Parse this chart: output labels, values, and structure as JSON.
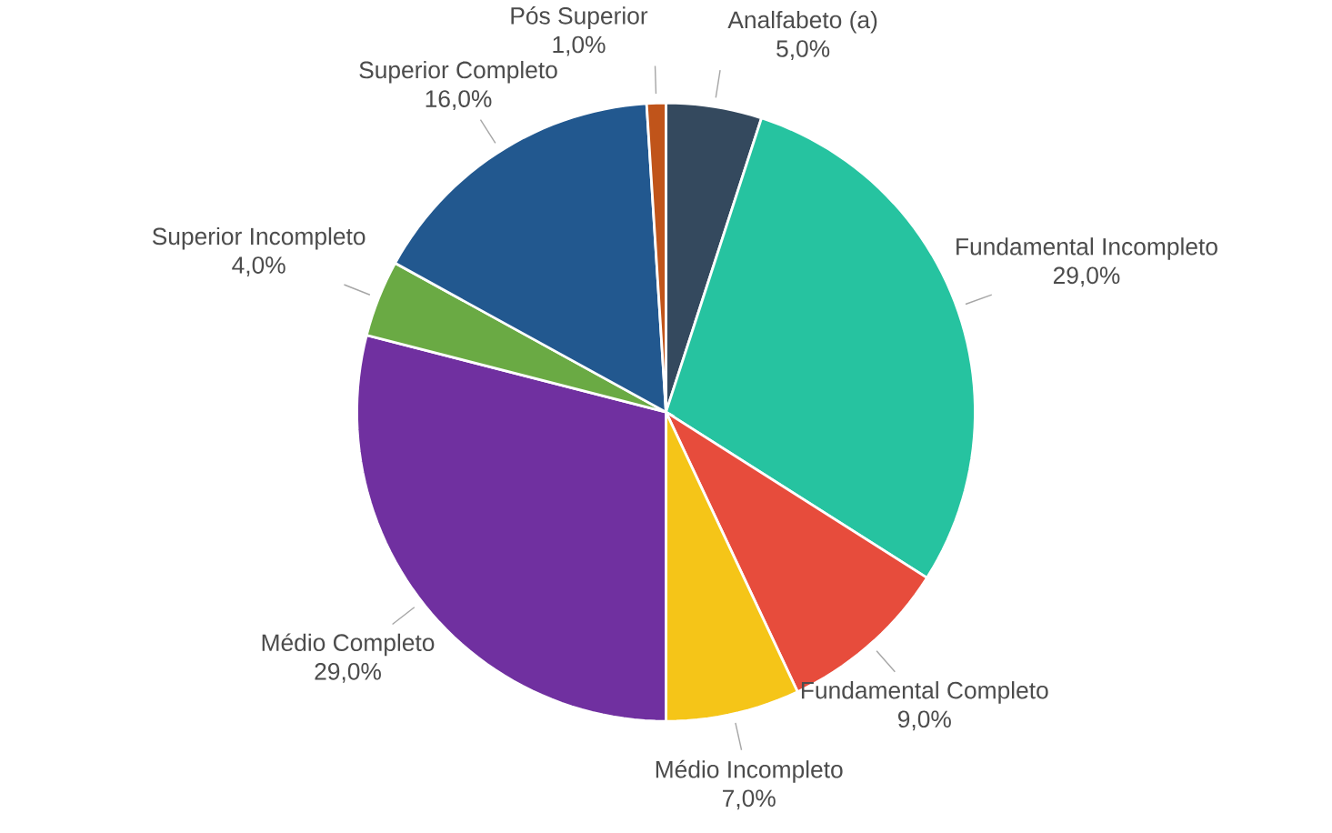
{
  "chart_data": {
    "type": "pie",
    "categories": [
      "Analfabeto (a)",
      "Fundamental Incompleto",
      "Fundamental Completo",
      "Médio Incompleto",
      "Médio Completo",
      "Superior Incompleto",
      "Superior Completo",
      "Pós Superior"
    ],
    "values": [
      5,
      29,
      9,
      7,
      29,
      4,
      16,
      1
    ],
    "value_labels": [
      "5,0%",
      "29,0%",
      "9,0%",
      "7,0%",
      "29,0%",
      "4,0%",
      "16,0%",
      "1,0%"
    ],
    "colors": [
      "#34495e",
      "#26c3a0",
      "#e74c3c",
      "#f5c518",
      "#7030a0",
      "#6aaa44",
      "#22588f",
      "#c0541a"
    ]
  }
}
